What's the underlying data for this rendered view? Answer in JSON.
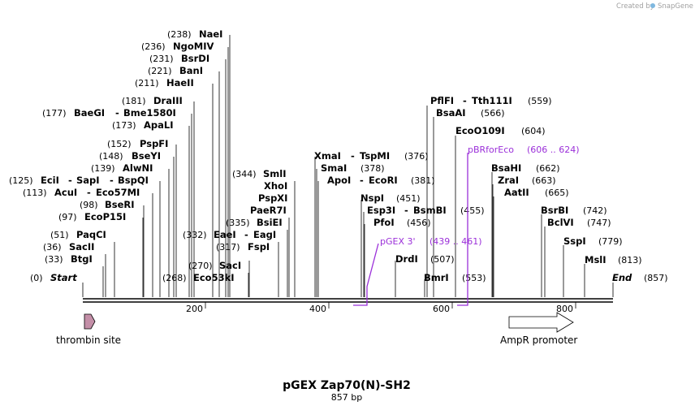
{
  "credit": {
    "created_by": "Created by",
    "brand": "SnapGene"
  },
  "map": {
    "title": "pGEX Zap70(N)-SH2",
    "length_label": "857 bp"
  },
  "ends": {
    "start": {
      "label": "Start",
      "pos": "(0)"
    },
    "end": {
      "label": "End",
      "pos": "(857)"
    }
  },
  "ticks": [
    "200",
    "400",
    "600",
    "800"
  ],
  "sites": [
    {
      "name": "NaeI",
      "pos": "(238)"
    },
    {
      "name": "NgoMIV",
      "pos": "(236)"
    },
    {
      "name": "BsrDI",
      "pos": "(231)"
    },
    {
      "name": "BanI",
      "pos": "(221)"
    },
    {
      "name": "HaeII",
      "pos": "(211)"
    },
    {
      "name": "DraIII",
      "pos": "(181)"
    },
    {
      "name": "BaeGI",
      "name2": "Bme1580I",
      "pos": "(177)"
    },
    {
      "name": "ApaLI",
      "pos": "(173)"
    },
    {
      "name": "PspFI",
      "pos": "(152)"
    },
    {
      "name": "BseYI",
      "pos": "(148)"
    },
    {
      "name": "AlwNI",
      "pos": "(139)"
    },
    {
      "name": "EciI",
      "name2": "SapI",
      "name3": "BspQI",
      "pos": "(125)"
    },
    {
      "name": "AcuI",
      "name2": "Eco57MI",
      "pos": "(113)"
    },
    {
      "name": "BseRI",
      "pos": "(98)"
    },
    {
      "name": "EcoP15I",
      "pos": "(97)"
    },
    {
      "name": "PaqCI",
      "pos": "(51)"
    },
    {
      "name": "SacII",
      "pos": "(36)"
    },
    {
      "name": "BtgI",
      "pos": "(33)"
    },
    {
      "name": "Eco53kI",
      "pos": "(268)"
    },
    {
      "name": "SacI",
      "pos": "(270)"
    },
    {
      "name": "EaeI",
      "name2": "EagI",
      "pos": "(332)"
    },
    {
      "name": "FspI",
      "pos": "(317)"
    },
    {
      "name": "BsiEI",
      "pos": "(335)"
    },
    {
      "name": "SmlI",
      "pos": "(344)"
    },
    {
      "name": "XhoI"
    },
    {
      "name": "PspXI"
    },
    {
      "name": "PaeR7I"
    },
    {
      "name": "XmaI",
      "name2": "TspMI",
      "pos": "(376)"
    },
    {
      "name": "SmaI",
      "pos": "(378)"
    },
    {
      "name": "ApoI",
      "name2": "EcoRI",
      "pos": "(381)"
    },
    {
      "name": "NspI",
      "pos": "(451)"
    },
    {
      "name": "Esp3I",
      "name2": "BsmBI",
      "pos": "(455)"
    },
    {
      "name": "PfoI",
      "pos": "(456)"
    },
    {
      "name": "DrdI",
      "pos": "(507)"
    },
    {
      "name": "BmrI",
      "pos": "(553)"
    },
    {
      "name": "PflFI",
      "name2": "Tth111I",
      "pos": "(559)"
    },
    {
      "name": "BsaAI",
      "pos": "(566)"
    },
    {
      "name": "EcoO109I",
      "pos": "(604)"
    },
    {
      "name": "BsaHI",
      "pos": "(662)"
    },
    {
      "name": "ZraI",
      "pos": "(663)"
    },
    {
      "name": "AatII",
      "pos": "(665)"
    },
    {
      "name": "BsrBI",
      "pos": "(742)"
    },
    {
      "name": "BclVI",
      "pos": "(747)"
    },
    {
      "name": "SspI",
      "pos": "(779)"
    },
    {
      "name": "MslI",
      "pos": "(813)"
    }
  ],
  "primers": [
    {
      "name": "pGEX 3'",
      "range": "(439 .. 461)"
    },
    {
      "name": "pBRforEco",
      "range": "(606 .. 624)"
    }
  ],
  "features": [
    {
      "name": "thrombin site"
    },
    {
      "name": "AmpR promoter"
    }
  ],
  "colors": {
    "primer": "#9b30d9",
    "thrombin": "#c48fa8",
    "backbone": "#000000"
  }
}
